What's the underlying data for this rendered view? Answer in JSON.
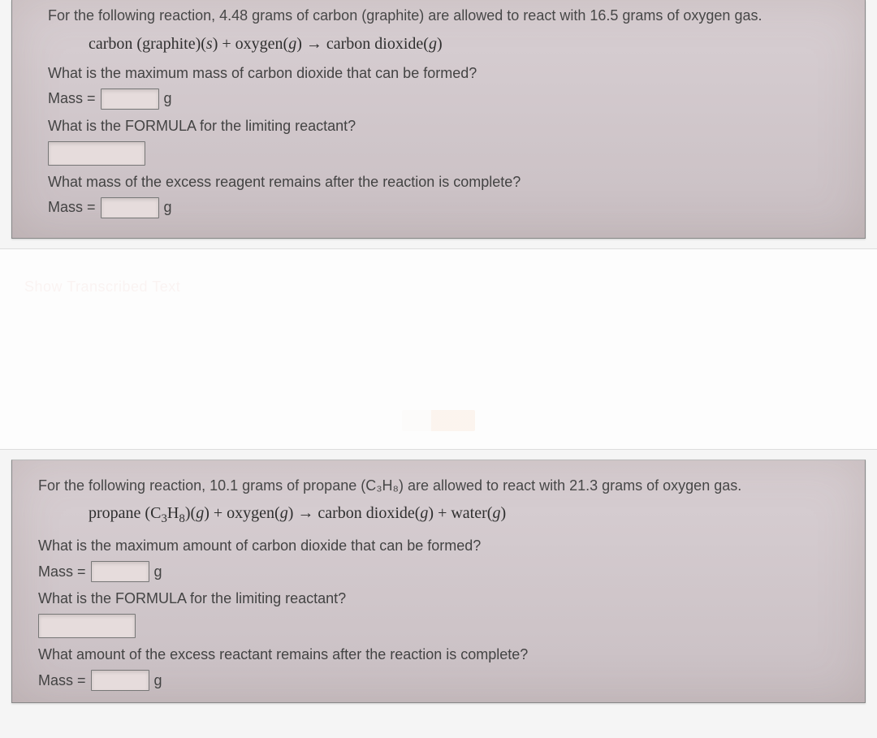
{
  "problem1": {
    "intro": "For the following reaction, 4.48 grams of carbon (graphite) are allowed to react with 16.5 grams of oxygen gas.",
    "equation_html": "carbon (graphite)(<i>s</i>) + oxygen(<i>g</i>) → carbon dioxide(<i>g</i>)",
    "q1": "What is the maximum mass of carbon dioxide that can be formed?",
    "mass_label": "Mass =",
    "unit": "g",
    "q2": "What is the FORMULA for the limiting reactant?",
    "q3": "What mass of the excess reagent remains after the reaction is complete?"
  },
  "middle": {
    "transcribed": "Show Transcribed Text"
  },
  "problem2": {
    "intro": "For the following reaction, 10.1 grams of propane (C₃H₈) are allowed to react with 21.3 grams of oxygen gas.",
    "equation_html": "propane (C<sub>3</sub>H<sub>8</sub>)(<i>g</i>) + oxygen(<i>g</i>) → carbon dioxide(<i>g</i>) + water(<i>g</i>)",
    "q1": "What is the maximum amount of carbon dioxide that can be formed?",
    "mass_label": "Mass =",
    "unit": "g",
    "q2": "What is the FORMULA for the limiting reactant?",
    "q3": "What amount of the excess reactant remains after the reaction is complete?"
  },
  "colors": {
    "panel_bg_top": "#d8cfd3",
    "panel_bg_bottom": "#c9bfc3",
    "text": "#3a3a3a",
    "input_bg": "#e6dcdc",
    "input_border": "#777777",
    "page_bg": "#f5f5f5"
  }
}
